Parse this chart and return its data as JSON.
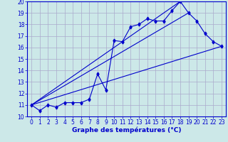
{
  "xlabel": "Graphe des températures (°C)",
  "bg_color": "#cce8e8",
  "grid_color": "#aaaacc",
  "line_color": "#0000cc",
  "xlim": [
    -0.5,
    23.5
  ],
  "ylim": [
    10,
    20
  ],
  "xticks": [
    0,
    1,
    2,
    3,
    4,
    5,
    6,
    7,
    8,
    9,
    10,
    11,
    12,
    13,
    14,
    15,
    16,
    17,
    18,
    19,
    20,
    21,
    22,
    23
  ],
  "yticks": [
    10,
    11,
    12,
    13,
    14,
    15,
    16,
    17,
    18,
    19,
    20
  ],
  "series1_x": [
    0,
    1,
    2,
    3,
    4,
    5,
    6,
    7,
    8,
    9,
    10,
    11,
    12,
    13,
    14,
    15,
    16,
    17,
    18,
    19,
    20,
    21,
    22,
    23
  ],
  "series1_y": [
    11.0,
    10.5,
    11.0,
    10.8,
    11.2,
    11.2,
    11.2,
    11.5,
    13.7,
    12.3,
    16.6,
    16.5,
    17.8,
    18.0,
    18.5,
    18.3,
    18.3,
    19.2,
    20.0,
    19.0,
    18.3,
    17.2,
    16.5,
    16.1
  ],
  "series2_x": [
    0,
    23
  ],
  "series2_y": [
    11.0,
    16.1
  ],
  "series3_x": [
    0,
    19
  ],
  "series3_y": [
    11.0,
    19.0
  ],
  "series4_x": [
    0,
    18
  ],
  "series4_y": [
    11.0,
    20.0
  ],
  "tick_fontsize": 5.5,
  "xlabel_fontsize": 6.5
}
